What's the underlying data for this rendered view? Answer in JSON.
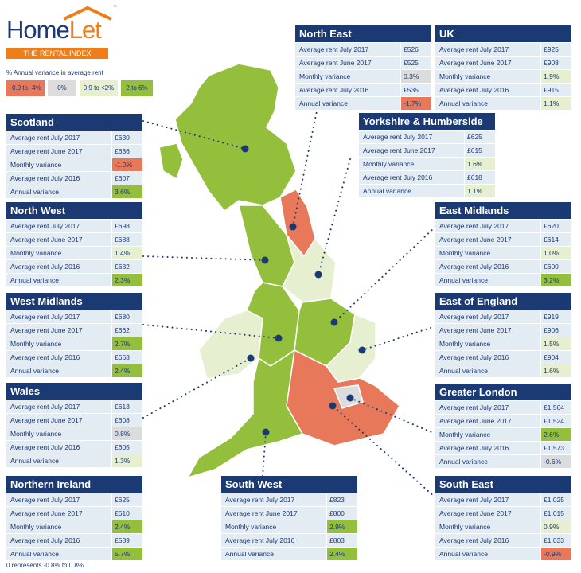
{
  "brand": {
    "name_part1": "Home",
    "name_part2": "Let",
    "tagline": "THE RENTAL INDEX",
    "tm": "™"
  },
  "legend": {
    "title": "% Annual variance in average rent",
    "items": [
      {
        "label": "-0.9 to -4%",
        "color": "#e8785a"
      },
      {
        "label": "0%",
        "color": "#dcdcdc"
      },
      {
        "label": "0.9 to <2%",
        "color": "#e6efcf"
      },
      {
        "label": "2 to 6%",
        "color": "#93bf3c"
      }
    ]
  },
  "row_labels": [
    "Average rent July 2017",
    "Average rent June 2017",
    "Monthly variance",
    "Average rent July 2016",
    "Annual variance"
  ],
  "regions": [
    {
      "name": "North East",
      "values": [
        "£526",
        "£525",
        "0.3%",
        "£535",
        "-1.7%"
      ],
      "monthly_class": "grey",
      "annual_class": "red"
    },
    {
      "name": "UK",
      "values": [
        "£925",
        "£908",
        "1.9%",
        "£915",
        "1.1%"
      ],
      "monthly_class": "light",
      "annual_class": "light"
    },
    {
      "name": "Yorkshire & Humberside",
      "values": [
        "£625",
        "£615",
        "1.6%",
        "£618",
        "1.1%"
      ],
      "monthly_class": "light",
      "annual_class": "light"
    },
    {
      "name": "Scotland",
      "values": [
        "£630",
        "£636",
        "-1.0%",
        "£607",
        "3.6%"
      ],
      "monthly_class": "red",
      "annual_class": "green"
    },
    {
      "name": "North West",
      "values": [
        "£698",
        "£688",
        "1.4%",
        "£682",
        "2.3%"
      ],
      "monthly_class": "light",
      "annual_class": "green"
    },
    {
      "name": "West Midlands",
      "values": [
        "£680",
        "£662",
        "2.7%",
        "£663",
        "2.4%"
      ],
      "monthly_class": "green",
      "annual_class": "green"
    },
    {
      "name": "Wales",
      "values": [
        "£613",
        "£608",
        "0.8%",
        "£605",
        "1.3%"
      ],
      "monthly_class": "grey",
      "annual_class": "light"
    },
    {
      "name": "Northern Ireland",
      "values": [
        "£625",
        "£610",
        "2.4%",
        "£589",
        "5.7%"
      ],
      "monthly_class": "green",
      "annual_class": "green"
    },
    {
      "name": "South West",
      "values": [
        "£823",
        "£800",
        "2.9%",
        "£803",
        "2.4%"
      ],
      "monthly_class": "green",
      "annual_class": "green"
    },
    {
      "name": "East Midlands",
      "values": [
        "£620",
        "£614",
        "1.0%",
        "£600",
        "3.2%"
      ],
      "monthly_class": "light",
      "annual_class": "green"
    },
    {
      "name": "East of England",
      "values": [
        "£919",
        "£906",
        "1.5%",
        "£904",
        "1.6%"
      ],
      "monthly_class": "light",
      "annual_class": "light"
    },
    {
      "name": "Greater London",
      "values": [
        "£1,564",
        "£1,524",
        "2.6%",
        "£1,573",
        "-0.6%"
      ],
      "monthly_class": "green",
      "annual_class": "grey"
    },
    {
      "name": "South East",
      "values": [
        "£1,025",
        "£1,015",
        "0.9%",
        "£1,033",
        "-0.9%"
      ],
      "monthly_class": "light",
      "annual_class": "red"
    }
  ],
  "colors": {
    "red": "#e8785a",
    "grey": "#dcdcdc",
    "light": "#e6efcf",
    "green": "#93bf3c",
    "navy": "#1b3a73",
    "orange": "#ef7d1a"
  },
  "footnote": "0 represents -0.8% to 0.8%"
}
